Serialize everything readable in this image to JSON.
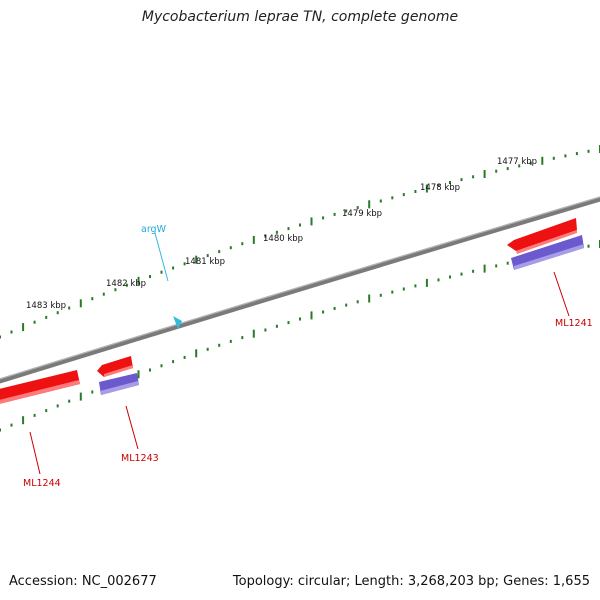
{
  "title": "Mycobacterium leprae TN, complete genome",
  "accession": "Accession: NC_002677",
  "summary": "Topology: circular; Length: 3,268,203 bp; Genes: 1,655",
  "colors": {
    "backbone": "#7a7a7a",
    "tick": "#2a7a2a",
    "gene_forward": "#ee1111",
    "gene_reverse": "#6a5acd",
    "trna": "#33bbdd",
    "gene_label": "#cc0000",
    "trna_label": "#22aadd"
  },
  "scale_labels": [
    "1477 kbp",
    "1478 kbp",
    "1479 kbp",
    "1480 kbp",
    "1481 kbp",
    "1482 kbp",
    "1483 kbp"
  ],
  "features": [
    {
      "name": "argW",
      "kind": "tRNA"
    },
    {
      "name": "ML1241",
      "kind": "gene"
    },
    {
      "name": "ML1243",
      "kind": "gene"
    },
    {
      "name": "ML1244",
      "kind": "gene"
    }
  ]
}
